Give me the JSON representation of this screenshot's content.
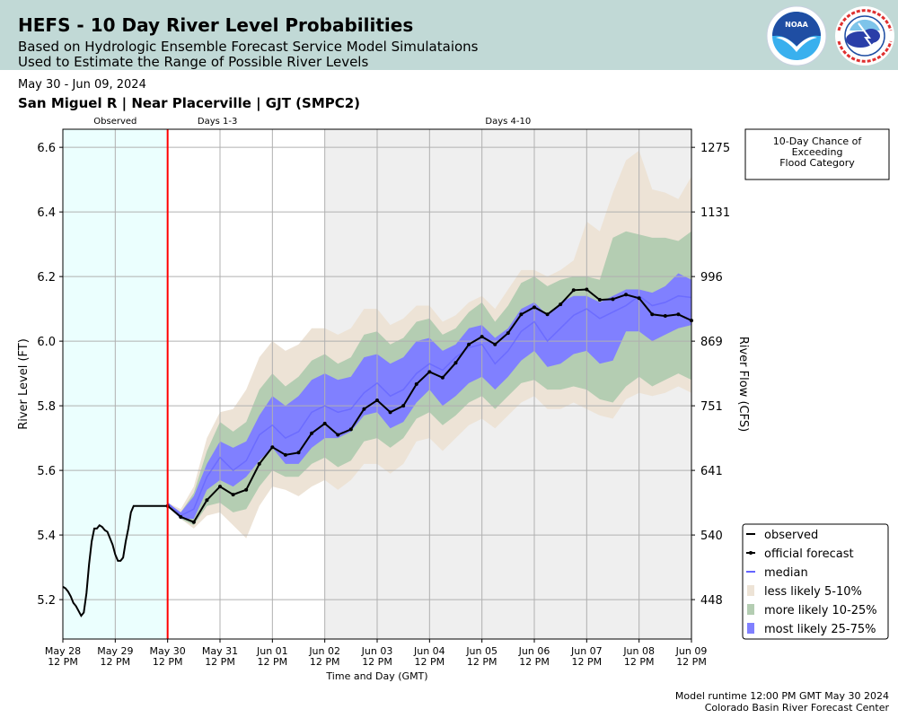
{
  "header": {
    "title": "HEFS - 10 Day River Level Probabilities",
    "subtitle_line1": "Based on Hydrologic Ensemble Forecast Service Model Simulataions",
    "subtitle_line2": "Used to Estimate the Range of Possible River Levels",
    "logos": [
      "noaa-logo",
      "national-weather-service-logo"
    ],
    "noaa_label": "NOAA",
    "nws_label": "NATIONAL WEATHER SERVICE"
  },
  "date_range": "May 30 - Jun 09, 2024",
  "station": "San Miguel R | Near Placerville | GJT (SMPC2)",
  "footer": {
    "runtime": "Model runtime 12:00 PM GMT May 30 2024",
    "center": "Colorado Basin River Forecast Center"
  },
  "flood_box": {
    "line1": "10-Day Chance of",
    "line2": "Exceeding",
    "line3": "Flood Category"
  },
  "chart_data": {
    "type": "area",
    "title": "HEFS - 10 Day River Level Probabilities",
    "xlabel": "Time and Day (GMT)",
    "ylabel": "River Level (FT)",
    "y2label": "River Flow (CFS)",
    "ylim": [
      5.078,
      6.656
    ],
    "xlim_days": [
      0,
      12
    ],
    "grid": true,
    "legend_position": "lower-right",
    "x_tick_labels": [
      [
        "May 28",
        "12 PM"
      ],
      [
        "May 29",
        "12 PM"
      ],
      [
        "May 30",
        "12 PM"
      ],
      [
        "May 31",
        "12 PM"
      ],
      [
        "Jun 01",
        "12 PM"
      ],
      [
        "Jun 02",
        "12 PM"
      ],
      [
        "Jun 03",
        "12 PM"
      ],
      [
        "Jun 04",
        "12 PM"
      ],
      [
        "Jun 05",
        "12 PM"
      ],
      [
        "Jun 06",
        "12 PM"
      ],
      [
        "Jun 07",
        "12 PM"
      ],
      [
        "Jun 08",
        "12 PM"
      ],
      [
        "Jun 09",
        "12 PM"
      ]
    ],
    "y_ticks": [
      5.2,
      5.4,
      5.6,
      5.8,
      6.0,
      6.2,
      6.4,
      6.6
    ],
    "y_tick_labels": [
      "5.2",
      "5.4",
      "5.6",
      "5.8",
      "6.0",
      "6.2",
      "6.4",
      "6.6"
    ],
    "y2_ticks": [
      {
        "level": 5.2,
        "label": "448"
      },
      {
        "level": 5.4,
        "label": "540"
      },
      {
        "level": 5.6,
        "label": "641"
      },
      {
        "level": 5.8,
        "label": "751"
      },
      {
        "level": 6.0,
        "label": "869"
      },
      {
        "level": 6.2,
        "label": "996"
      },
      {
        "level": 6.4,
        "label": "1131"
      },
      {
        "level": 6.6,
        "label": "1275"
      }
    ],
    "regions": [
      {
        "label": "Observed",
        "start_day": 0,
        "end_day": 2,
        "color": "#ebfffe"
      },
      {
        "label": "Days 1-3",
        "start_day": 2,
        "end_day": 5,
        "color": "#ffffff"
      },
      {
        "label": "Days 4-10",
        "start_day": 5,
        "end_day": 12,
        "color": "#efefef"
      }
    ],
    "forecast_start_day": 2,
    "forecast_start_color": "#ff0000",
    "observed": {
      "name": "observed",
      "color": "#000000",
      "x_days": [
        0,
        0.05,
        0.1,
        0.15,
        0.2,
        0.25,
        0.3,
        0.35,
        0.4,
        0.45,
        0.5,
        0.55,
        0.6,
        0.65,
        0.7,
        0.75,
        0.8,
        0.85,
        0.9,
        0.95,
        1.0,
        1.05,
        1.1,
        1.15,
        1.2,
        1.25,
        1.3,
        1.35,
        1.4,
        1.45,
        1.5,
        1.55,
        1.6,
        1.65,
        1.7,
        1.75,
        1.8,
        1.85,
        1.9,
        1.95,
        2.0
      ],
      "values": [
        5.24,
        5.235,
        5.225,
        5.21,
        5.19,
        5.18,
        5.165,
        5.15,
        5.16,
        5.22,
        5.31,
        5.38,
        5.42,
        5.42,
        5.43,
        5.425,
        5.415,
        5.41,
        5.39,
        5.37,
        5.34,
        5.32,
        5.32,
        5.33,
        5.38,
        5.42,
        5.47,
        5.49,
        5.49,
        5.49,
        5.49,
        5.49,
        5.49,
        5.49,
        5.49,
        5.49,
        5.49,
        5.49,
        5.49,
        5.49,
        5.49
      ]
    },
    "official_forecast": {
      "name": "official forecast",
      "color": "#000000",
      "x_days": [
        2.0,
        2.25,
        2.5,
        2.75,
        3.0,
        3.25,
        3.5,
        3.75,
        4.0,
        4.25,
        4.5,
        4.75,
        5.0,
        5.25,
        5.5,
        5.75,
        6.0,
        6.25,
        6.5,
        6.75,
        7.0,
        7.25,
        7.5,
        7.75,
        8.0,
        8.25,
        8.5,
        8.75,
        9.0,
        9.25,
        9.5,
        9.75,
        10.0,
        10.25,
        10.5,
        10.75,
        11.0,
        11.25,
        11.5,
        11.75,
        12.0
      ],
      "values": [
        5.49,
        5.456,
        5.44,
        5.508,
        5.55,
        5.525,
        5.54,
        5.62,
        5.672,
        5.648,
        5.655,
        5.715,
        5.745,
        5.71,
        5.727,
        5.79,
        5.817,
        5.78,
        5.8,
        5.867,
        5.905,
        5.887,
        5.933,
        5.99,
        6.014,
        5.99,
        6.025,
        6.083,
        6.105,
        6.083,
        6.114,
        6.158,
        6.16,
        6.128,
        6.13,
        6.144,
        6.133,
        6.083,
        6.078,
        6.083,
        6.064
      ]
    },
    "median": {
      "name": "median",
      "color": "#6464ff",
      "x_days": [
        2.0,
        2.25,
        2.5,
        2.75,
        3.0,
        3.25,
        3.5,
        3.75,
        4.0,
        4.25,
        4.5,
        4.75,
        5.0,
        5.25,
        5.5,
        5.75,
        6.0,
        6.25,
        6.5,
        6.75,
        7.0,
        7.25,
        7.5,
        7.75,
        8.0,
        8.25,
        8.5,
        8.75,
        9.0,
        9.25,
        9.5,
        9.75,
        10.0,
        10.25,
        10.5,
        10.75,
        11.0,
        11.25,
        11.5,
        11.75,
        12.0
      ],
      "values": [
        5.5,
        5.46,
        5.48,
        5.58,
        5.64,
        5.6,
        5.63,
        5.71,
        5.74,
        5.7,
        5.72,
        5.78,
        5.8,
        5.78,
        5.79,
        5.84,
        5.87,
        5.83,
        5.85,
        5.9,
        5.93,
        5.91,
        5.95,
        5.98,
        5.99,
        5.93,
        5.97,
        6.03,
        6.06,
        6.0,
        6.04,
        6.08,
        6.1,
        6.07,
        6.09,
        6.11,
        6.14,
        6.11,
        6.12,
        6.14,
        6.135
      ]
    },
    "bands": [
      {
        "name": "less likely 5-10%",
        "color": "#ede3d6",
        "x_days": [
          2.0,
          2.25,
          2.5,
          2.75,
          3.0,
          3.25,
          3.5,
          3.75,
          4.0,
          4.25,
          4.5,
          4.75,
          5.0,
          5.25,
          5.5,
          5.75,
          6.0,
          6.25,
          6.5,
          6.75,
          7.0,
          7.25,
          7.5,
          7.75,
          8.0,
          8.25,
          8.5,
          8.75,
          9.0,
          9.25,
          9.5,
          9.75,
          10.0,
          10.25,
          10.5,
          10.75,
          11.0,
          11.25,
          11.5,
          11.75,
          12.0
        ],
        "upper": [
          5.5,
          5.48,
          5.55,
          5.7,
          5.78,
          5.79,
          5.85,
          5.95,
          6.0,
          5.97,
          5.99,
          6.04,
          6.04,
          6.02,
          6.04,
          6.1,
          6.1,
          6.05,
          6.07,
          6.11,
          6.11,
          6.06,
          6.08,
          6.12,
          6.14,
          6.1,
          6.16,
          6.22,
          6.22,
          6.2,
          6.22,
          6.25,
          6.37,
          6.34,
          6.46,
          6.56,
          6.59,
          6.47,
          6.46,
          6.44,
          6.51
        ],
        "lower": [
          5.49,
          5.45,
          5.42,
          5.46,
          5.47,
          5.43,
          5.39,
          5.49,
          5.55,
          5.54,
          5.52,
          5.55,
          5.57,
          5.54,
          5.57,
          5.62,
          5.62,
          5.59,
          5.62,
          5.69,
          5.7,
          5.66,
          5.7,
          5.74,
          5.76,
          5.73,
          5.77,
          5.81,
          5.83,
          5.79,
          5.79,
          5.81,
          5.79,
          5.77,
          5.76,
          5.82,
          5.84,
          5.83,
          5.84,
          5.86,
          5.84
        ]
      },
      {
        "name": "more likely 10-25%",
        "color": "#b4cdb2",
        "x_days": [
          2.0,
          2.25,
          2.5,
          2.75,
          3.0,
          3.25,
          3.5,
          3.75,
          4.0,
          4.25,
          4.5,
          4.75,
          5.0,
          5.25,
          5.5,
          5.75,
          6.0,
          6.25,
          6.5,
          6.75,
          7.0,
          7.25,
          7.5,
          7.75,
          8.0,
          8.25,
          8.5,
          8.75,
          9.0,
          9.25,
          9.5,
          9.75,
          10.0,
          10.25,
          10.5,
          10.75,
          11.0,
          11.25,
          11.5,
          11.75,
          12.0
        ],
        "upper": [
          5.5,
          5.47,
          5.53,
          5.66,
          5.75,
          5.72,
          5.75,
          5.85,
          5.9,
          5.86,
          5.89,
          5.94,
          5.96,
          5.93,
          5.95,
          6.02,
          6.03,
          5.99,
          6.01,
          6.06,
          6.07,
          6.02,
          6.04,
          6.09,
          6.12,
          6.06,
          6.11,
          6.18,
          6.2,
          6.17,
          6.19,
          6.2,
          6.2,
          6.19,
          6.32,
          6.34,
          6.33,
          6.32,
          6.32,
          6.31,
          6.34
        ],
        "lower": [
          5.49,
          5.45,
          5.43,
          5.49,
          5.5,
          5.47,
          5.48,
          5.55,
          5.6,
          5.58,
          5.58,
          5.62,
          5.64,
          5.61,
          5.63,
          5.69,
          5.7,
          5.67,
          5.7,
          5.76,
          5.78,
          5.74,
          5.77,
          5.81,
          5.83,
          5.79,
          5.83,
          5.87,
          5.88,
          5.85,
          5.85,
          5.86,
          5.85,
          5.82,
          5.81,
          5.86,
          5.89,
          5.86,
          5.88,
          5.9,
          5.88
        ]
      },
      {
        "name": "most likely 25-75%",
        "color": "#8080ff",
        "x_days": [
          2.0,
          2.25,
          2.5,
          2.75,
          3.0,
          3.25,
          3.5,
          3.75,
          4.0,
          4.25,
          4.5,
          4.75,
          5.0,
          5.25,
          5.5,
          5.75,
          6.0,
          6.25,
          6.5,
          6.75,
          7.0,
          7.25,
          7.5,
          7.75,
          8.0,
          8.25,
          8.5,
          8.75,
          9.0,
          9.25,
          9.5,
          9.75,
          10.0,
          10.25,
          10.5,
          10.75,
          11.0,
          11.25,
          11.5,
          11.75,
          12.0
        ],
        "upper": [
          5.5,
          5.47,
          5.52,
          5.62,
          5.69,
          5.67,
          5.69,
          5.77,
          5.83,
          5.8,
          5.83,
          5.88,
          5.9,
          5.88,
          5.89,
          5.95,
          5.96,
          5.93,
          5.95,
          6.0,
          6.01,
          5.97,
          5.99,
          6.04,
          6.05,
          6.01,
          6.04,
          6.1,
          6.12,
          6.08,
          6.12,
          6.14,
          6.14,
          6.12,
          6.14,
          6.16,
          6.16,
          6.15,
          6.17,
          6.21,
          6.19
        ],
        "lower": [
          5.49,
          5.45,
          5.45,
          5.54,
          5.57,
          5.55,
          5.58,
          5.63,
          5.67,
          5.62,
          5.62,
          5.67,
          5.7,
          5.7,
          5.72,
          5.77,
          5.78,
          5.73,
          5.75,
          5.81,
          5.85,
          5.8,
          5.83,
          5.87,
          5.89,
          5.85,
          5.89,
          5.94,
          5.97,
          5.92,
          5.93,
          5.96,
          5.97,
          5.93,
          5.94,
          6.03,
          6.03,
          6.0,
          6.02,
          6.04,
          6.05
        ]
      }
    ],
    "legend": [
      {
        "label": "observed",
        "symbol": "line",
        "color": "#000000"
      },
      {
        "label": "official forecast",
        "symbol": "line-marker",
        "color": "#000000"
      },
      {
        "label": "median",
        "symbol": "line",
        "color": "#6464ff"
      },
      {
        "label": "less likely 5-10%",
        "symbol": "patch",
        "color": "#ede3d6"
      },
      {
        "label": "more likely 10-25%",
        "symbol": "patch",
        "color": "#b4cdb2"
      },
      {
        "label": "most likely 25-75%",
        "symbol": "patch",
        "color": "#8080ff"
      }
    ]
  }
}
